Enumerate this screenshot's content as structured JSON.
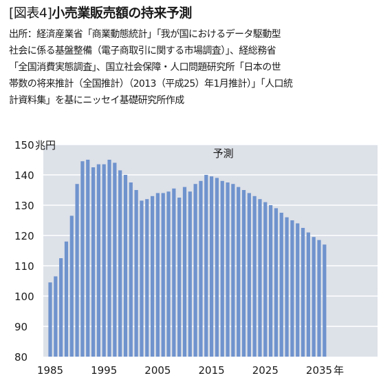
{
  "header": {
    "figure_label": "[図表4]",
    "title": "小売業販売額の持来予測"
  },
  "source_lines": [
    "出所：経済産業省「商業動態統計」「我が国におけるデータ駆動型",
    "社会に係る基盤整備（電子商取引に関する市場調査）」、経総務省",
    "「全国消費実態調査」、国立社会保障・人口問題研究所「日本の世",
    "帯数の将来推計（全国推計）（2013（平成25）年1月推計）」「人口統",
    "計資料集」を基にニッセイ基礎研究所作成"
  ],
  "colors": {
    "bar": "#6f93cd",
    "plot_bg": "#dde1e8",
    "gridline": "#ffffff",
    "text": "#1a1a1a"
  },
  "chart_data": {
    "type": "bar",
    "y_unit_label": "兆円",
    "x_unit_label": "年",
    "forecast_label": "予測",
    "forecast_start_year": 2015,
    "ylim": [
      80,
      150
    ],
    "yticks": [
      80,
      90,
      100,
      110,
      120,
      130,
      140,
      150
    ],
    "xticks": [
      1985,
      1995,
      2005,
      2015,
      2025,
      2035
    ],
    "grid": true,
    "years": [
      1985,
      1986,
      1987,
      1988,
      1989,
      1990,
      1991,
      1992,
      1993,
      1994,
      1995,
      1996,
      1997,
      1998,
      1999,
      2000,
      2001,
      2002,
      2003,
      2004,
      2005,
      2006,
      2007,
      2008,
      2009,
      2010,
      2011,
      2012,
      2013,
      2014,
      2015,
      2016,
      2017,
      2018,
      2019,
      2020,
      2021,
      2022,
      2023,
      2024,
      2025,
      2026,
      2027,
      2028,
      2029,
      2030,
      2031,
      2032,
      2033,
      2034,
      2035,
      2036
    ],
    "values": [
      104.5,
      106.5,
      112.5,
      118,
      126.5,
      137,
      144.5,
      145,
      142.5,
      143.5,
      143.5,
      145,
      144,
      141.5,
      140,
      137.5,
      135,
      131.5,
      132,
      133,
      134,
      134,
      134.5,
      135.5,
      132.5,
      136,
      134.5,
      137,
      138,
      140,
      139.5,
      139,
      138,
      137.5,
      137,
      136,
      135,
      134,
      133,
      132,
      131,
      130,
      129,
      127.5,
      126,
      125,
      124,
      122.5,
      121,
      119.5,
      118.5,
      117
    ]
  }
}
